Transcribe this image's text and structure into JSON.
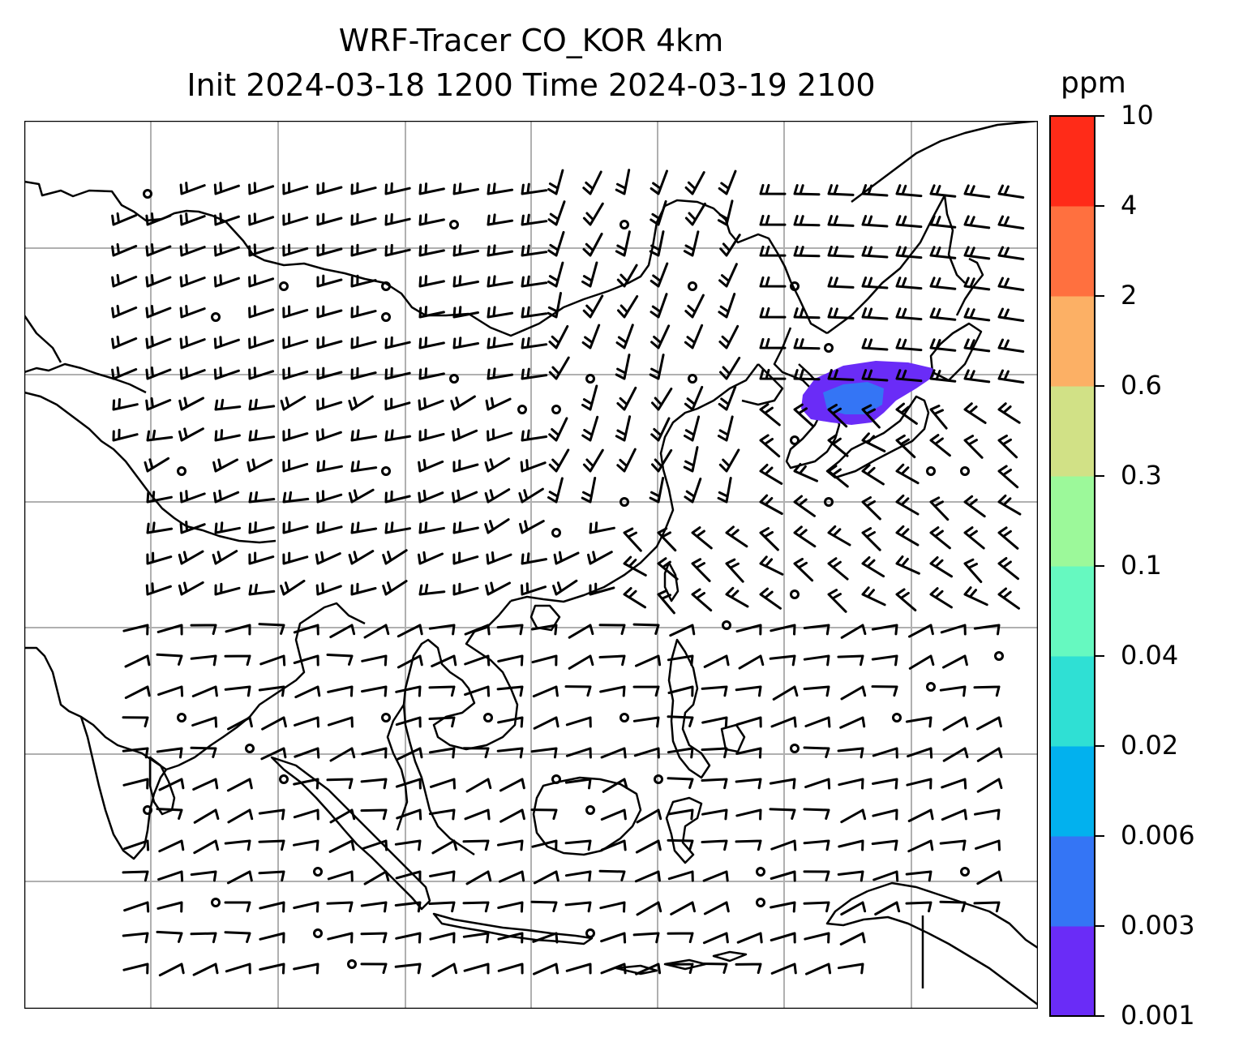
{
  "title": {
    "line1": "WRF-Tracer CO_KOR 4km",
    "line2": "Init 2024-03-18 1200 Time 2024-03-19 2100"
  },
  "colorbar": {
    "unit": "ppm",
    "ticks": [
      "0.001",
      "0.003",
      "0.006",
      "0.02",
      "0.04",
      "0.1",
      "0.3",
      "0.6",
      "2",
      "4",
      "10"
    ],
    "colors": [
      "#6a2cf7",
      "#3475f5",
      "#02b1ee",
      "#2fe0d4",
      "#66f9c0",
      "#9cf99a",
      "#d1e186",
      "#fcb065",
      "#ff703f",
      "#ff2b18"
    ]
  },
  "plume": {
    "color_outer": "#6a2cf7",
    "color_inner": "#3475f5"
  },
  "map": {
    "gridlines": true,
    "coastline_color": "#000000",
    "grid_color": "#b0b0b0"
  }
}
